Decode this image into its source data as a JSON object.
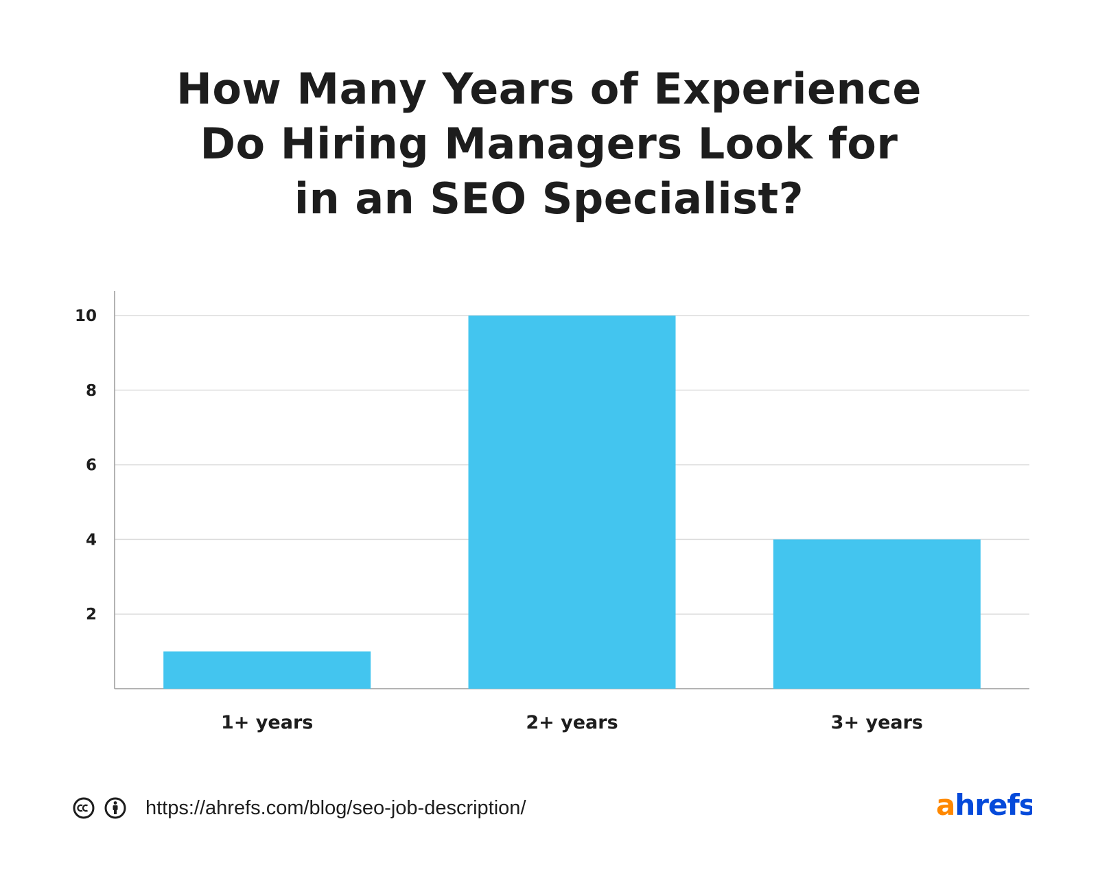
{
  "title_lines": [
    "How Many Years of Experience",
    "Do Hiring Managers Look for",
    "in an SEO Specialist?"
  ],
  "chart_data": {
    "type": "bar",
    "categories": [
      "1+ years",
      "2+ years",
      "3+ years"
    ],
    "values": [
      1,
      10,
      4
    ],
    "ylim": [
      0,
      10
    ],
    "yticks": [
      2,
      4,
      6,
      8,
      10
    ],
    "grid": true,
    "legend": "none",
    "bar_color": "#43c5ef"
  },
  "footer": {
    "url": "https://ahrefs.com/blog/seo-job-description/",
    "license_icons": [
      "creative-commons-icon",
      "attribution-icon"
    ]
  },
  "brand": {
    "logo_text": "ahrefs",
    "logo_colors": [
      "#ff8800",
      "#054ada"
    ]
  }
}
